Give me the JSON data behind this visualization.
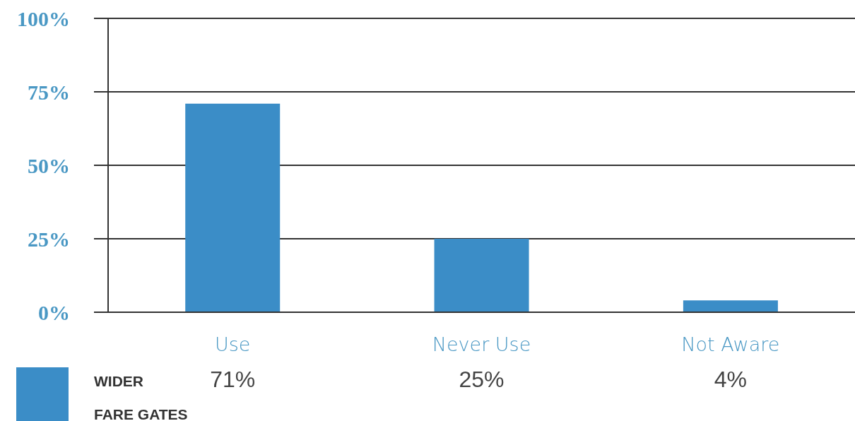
{
  "chart_data": {
    "type": "bar",
    "categories": [
      "Use",
      "Never Use",
      "Not Aware"
    ],
    "series": [
      {
        "name": "WIDER FARE GATES",
        "color": "#3b8dc7",
        "values": [
          71,
          25,
          4
        ],
        "value_labels": [
          "71%",
          "25%",
          "4%"
        ]
      }
    ],
    "ylim": [
      0,
      100
    ],
    "yticks": [
      {
        "value": 0,
        "label": "0%"
      },
      {
        "value": 25,
        "label": "25%"
      },
      {
        "value": 50,
        "label": "50%"
      },
      {
        "value": 75,
        "label": "75%"
      },
      {
        "value": 100,
        "label": "100%"
      }
    ],
    "grid": "y",
    "legend": "bottom left"
  }
}
